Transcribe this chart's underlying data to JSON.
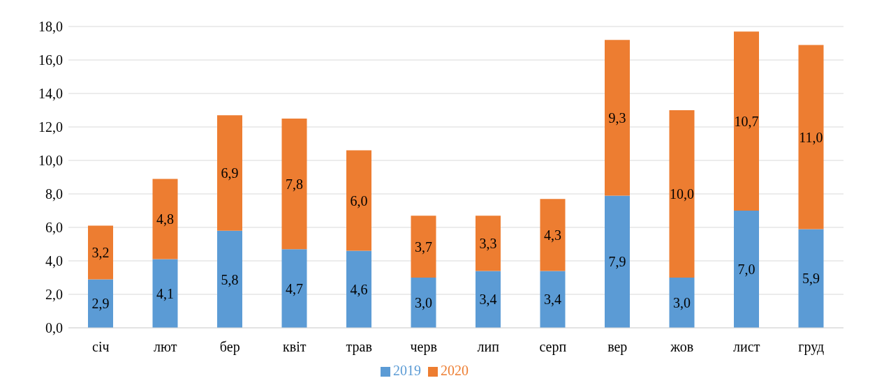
{
  "chart_data": {
    "type": "bar",
    "stacked": true,
    "categories": [
      "січ",
      "лют",
      "бер",
      "квіт",
      "трав",
      "черв",
      "лип",
      "серп",
      "вер",
      "жов",
      "лист",
      "груд"
    ],
    "series": [
      {
        "name": "2019",
        "color": "#5b9bd5",
        "values": [
          2.9,
          4.1,
          5.8,
          4.7,
          4.6,
          3.0,
          3.4,
          3.4,
          7.9,
          3.0,
          7.0,
          5.9
        ],
        "value_labels": [
          "2,9",
          "4,1",
          "5,8",
          "4,7",
          "4,6",
          "3,0",
          "3,4",
          "3,4",
          "7,9",
          "3,0",
          "7,0",
          "5,9"
        ]
      },
      {
        "name": "2020",
        "color": "#ed7d31",
        "values": [
          3.2,
          4.8,
          6.9,
          7.8,
          6.0,
          3.7,
          3.3,
          4.3,
          9.3,
          10.0,
          10.7,
          11.0
        ],
        "value_labels": [
          "3,2",
          "4,8",
          "6,9",
          "7,8",
          "6,0",
          "3,7",
          "3,3",
          "4,3",
          "9,3",
          "10,0",
          "10,7",
          "11,0"
        ]
      }
    ],
    "ylim": [
      0,
      18
    ],
    "yticks": [
      {
        "value": 0,
        "label": "0,0"
      },
      {
        "value": 2,
        "label": "2,0"
      },
      {
        "value": 4,
        "label": "4,0"
      },
      {
        "value": 6,
        "label": "6,0"
      },
      {
        "value": 8,
        "label": "8,0"
      },
      {
        "value": 10,
        "label": "10,0"
      },
      {
        "value": 12,
        "label": "12,0"
      },
      {
        "value": 14,
        "label": "14,0"
      },
      {
        "value": 16,
        "label": "16,0"
      },
      {
        "value": 18,
        "label": "18,0"
      }
    ],
    "grid": "y",
    "legend": "bottom"
  }
}
